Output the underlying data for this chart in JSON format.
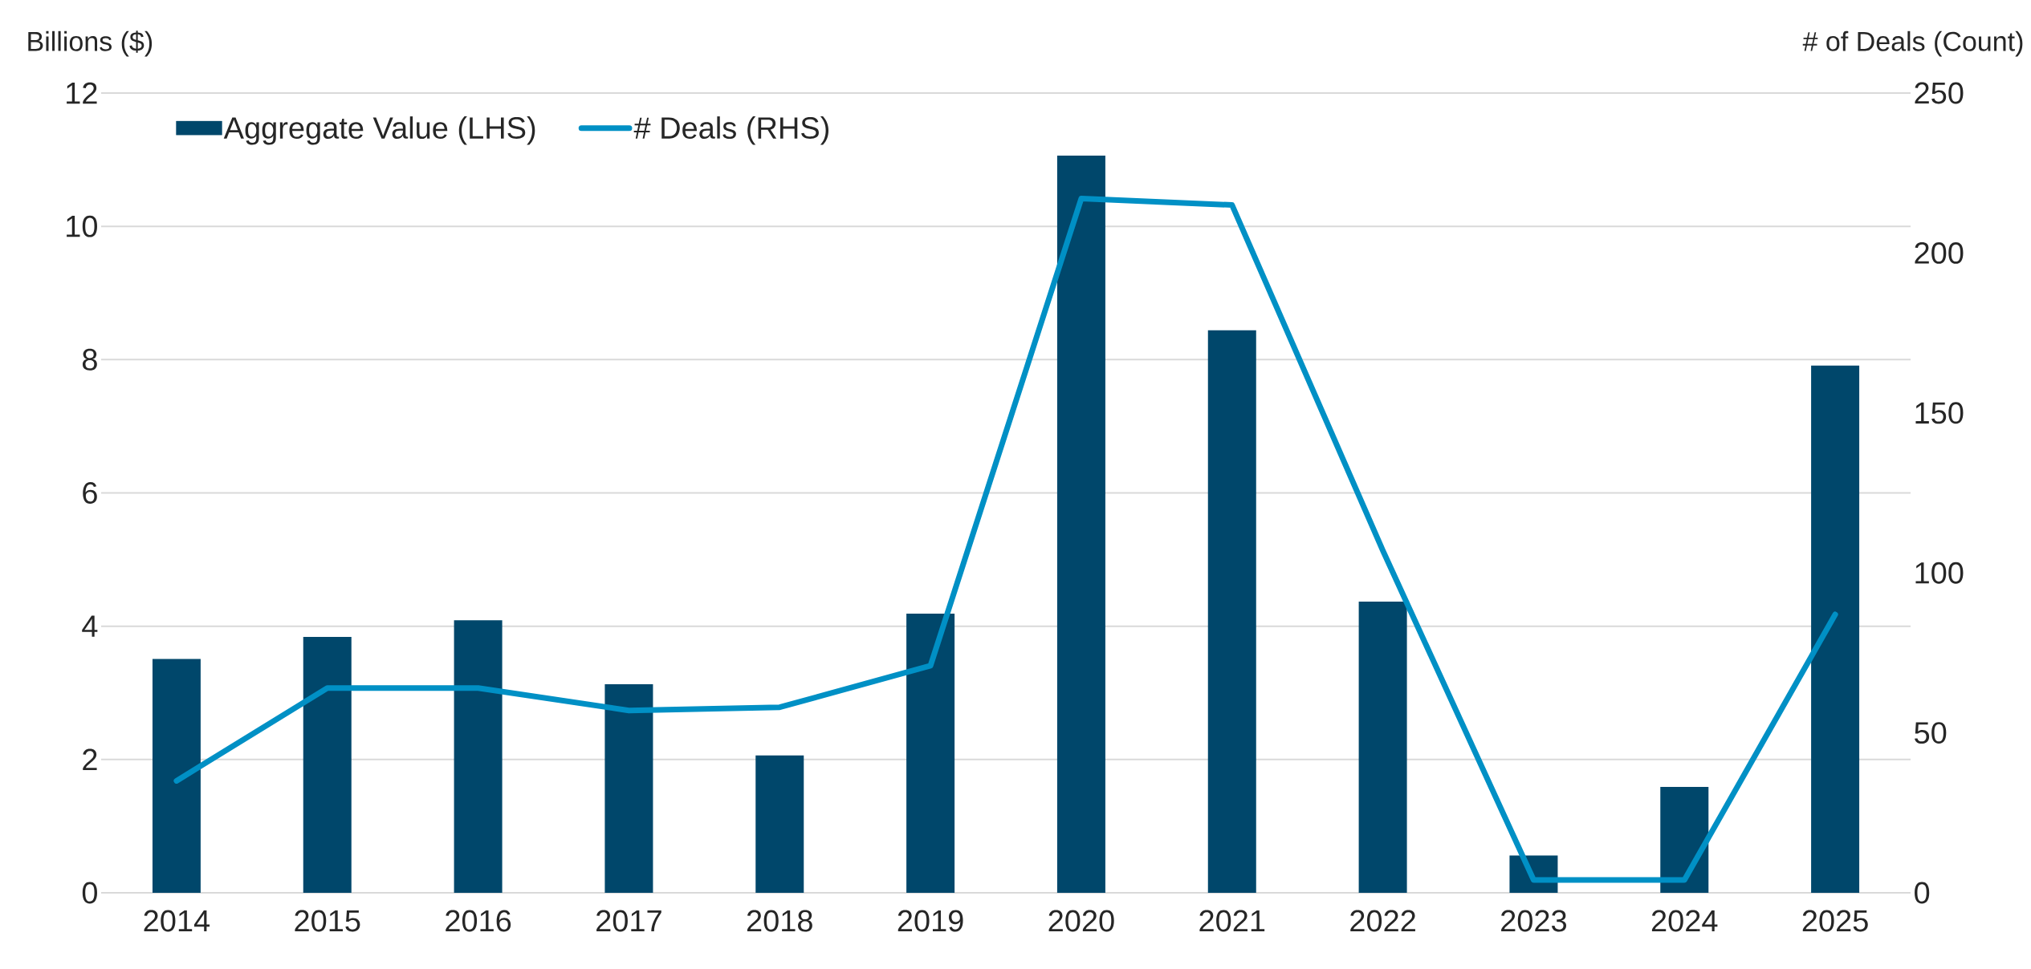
{
  "chart_data": {
    "type": "bar",
    "categories": [
      "2014",
      "2015",
      "2016",
      "2017",
      "2018",
      "2019",
      "2020",
      "2021",
      "2022",
      "2023",
      "2024",
      "2025"
    ],
    "series": [
      {
        "name": "Aggregate Value (LHS)",
        "color": "#00476b",
        "values": [
          3.51,
          3.84,
          4.09,
          3.13,
          2.06,
          4.19,
          11.06,
          8.44,
          4.37,
          0.56,
          1.59,
          7.91
        ]
      },
      {
        "name": "# Deals (RHS)",
        "type": "line",
        "axis": "y2",
        "color": "#0090c5",
        "values": [
          35,
          64,
          64,
          57,
          58,
          71,
          217,
          215,
          107,
          4,
          4,
          87
        ]
      }
    ],
    "ylabel": "Billions ($)",
    "y2label": "# of Deals (Count)",
    "ylim": [
      0,
      12
    ],
    "yticks": [
      0,
      2,
      4,
      6,
      8,
      10,
      12
    ],
    "y2lim": [
      0,
      250
    ],
    "y2ticks": [
      0,
      50,
      100,
      150,
      200,
      250
    ],
    "grid": "y",
    "legend": "top left"
  }
}
